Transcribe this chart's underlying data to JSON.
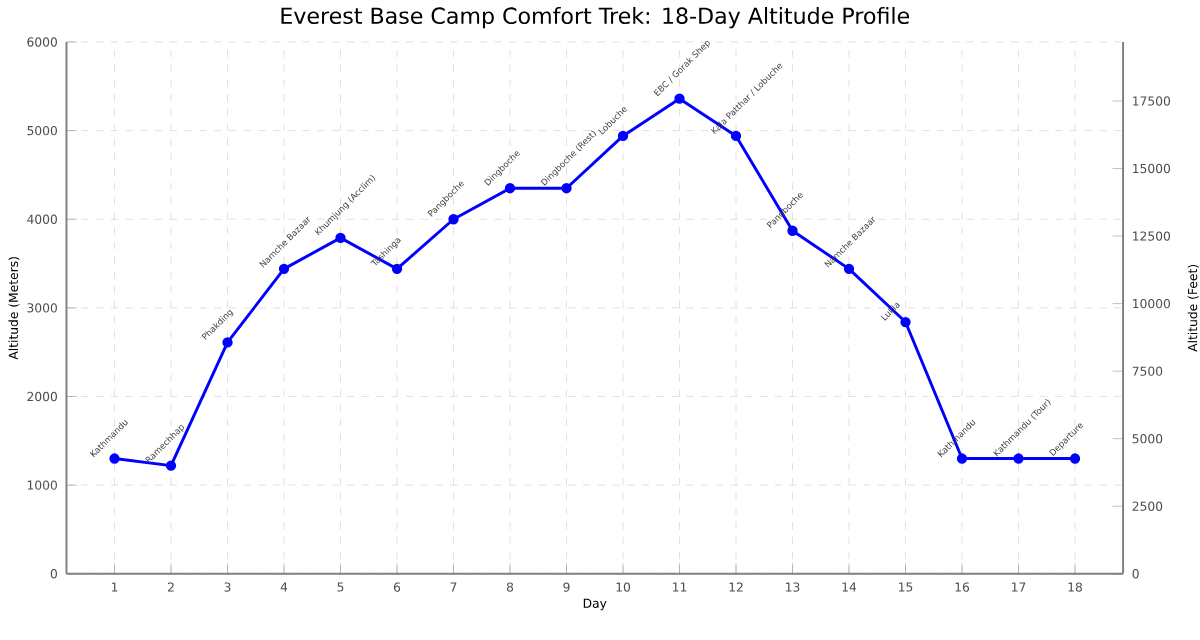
{
  "chart_data": {
    "type": "line",
    "title": "Everest Base Camp Comfort Trek: 18-Day Altitude Profile",
    "xlabel": "Day",
    "ylabel": "Altitude (Meters)",
    "y2label": "Altitude (Feet)",
    "x": [
      1,
      2,
      3,
      4,
      5,
      6,
      7,
      8,
      9,
      10,
      11,
      12,
      13,
      14,
      15,
      16,
      17,
      18
    ],
    "series": [
      {
        "color": "#0000ff",
        "values": [
          1300,
          1220,
          2610,
          3440,
          3790,
          3440,
          4000,
          4350,
          4350,
          4940,
          5360,
          4940,
          3870,
          3440,
          2840,
          1300,
          1300,
          1300
        ]
      }
    ],
    "xlim": [
      0.15,
      18.85
    ],
    "xticks": [
      1,
      2,
      3,
      4,
      5,
      6,
      7,
      8,
      9,
      10,
      11,
      12,
      13,
      14,
      15,
      16,
      17,
      18
    ],
    "ylim": [
      0,
      6000
    ],
    "yticks": [
      0,
      1000,
      2000,
      3000,
      4000,
      5000,
      6000
    ],
    "y2lim": [
      0,
      19685
    ],
    "y2ticks": [
      0,
      2500,
      5000,
      7500,
      10000,
      12500,
      15000,
      17500
    ],
    "grid": true,
    "marker": "circle",
    "line_style": "solid",
    "annotations": [
      {
        "text": "Kathmandu",
        "x": 1,
        "y": 1300
      },
      {
        "text": "Ramechhap",
        "x": 2,
        "y": 1220
      },
      {
        "text": "Phakding",
        "x": 3,
        "y": 2610
      },
      {
        "text": "Namche Bazaar",
        "x": 4,
        "y": 3440
      },
      {
        "text": "Khumjung (Acclim)",
        "x": 5,
        "y": 3790
      },
      {
        "text": "Tashinga",
        "x": 6,
        "y": 3440
      },
      {
        "text": "Pangboche",
        "x": 7,
        "y": 4000
      },
      {
        "text": "Dingboche",
        "x": 8,
        "y": 4350
      },
      {
        "text": "Dingboche (Rest)",
        "x": 9,
        "y": 4350
      },
      {
        "text": "Lobuche",
        "x": 10,
        "y": 4940
      },
      {
        "text": "EBC / Gorak Shep",
        "x": 11,
        "y": 5360
      },
      {
        "text": "Kala Patthar / Lobuche",
        "x": 12,
        "y": 4940
      },
      {
        "text": "Pangboche",
        "x": 13,
        "y": 3870
      },
      {
        "text": "Namche Bazaar",
        "x": 14,
        "y": 3440
      },
      {
        "text": "Lukla",
        "x": 15,
        "y": 2840
      },
      {
        "text": "Kathmandu",
        "x": 16,
        "y": 1300
      },
      {
        "text": "Kathmandu (Tour)",
        "x": 17,
        "y": 1300
      },
      {
        "text": "Departure",
        "x": 18,
        "y": 1300
      }
    ]
  }
}
